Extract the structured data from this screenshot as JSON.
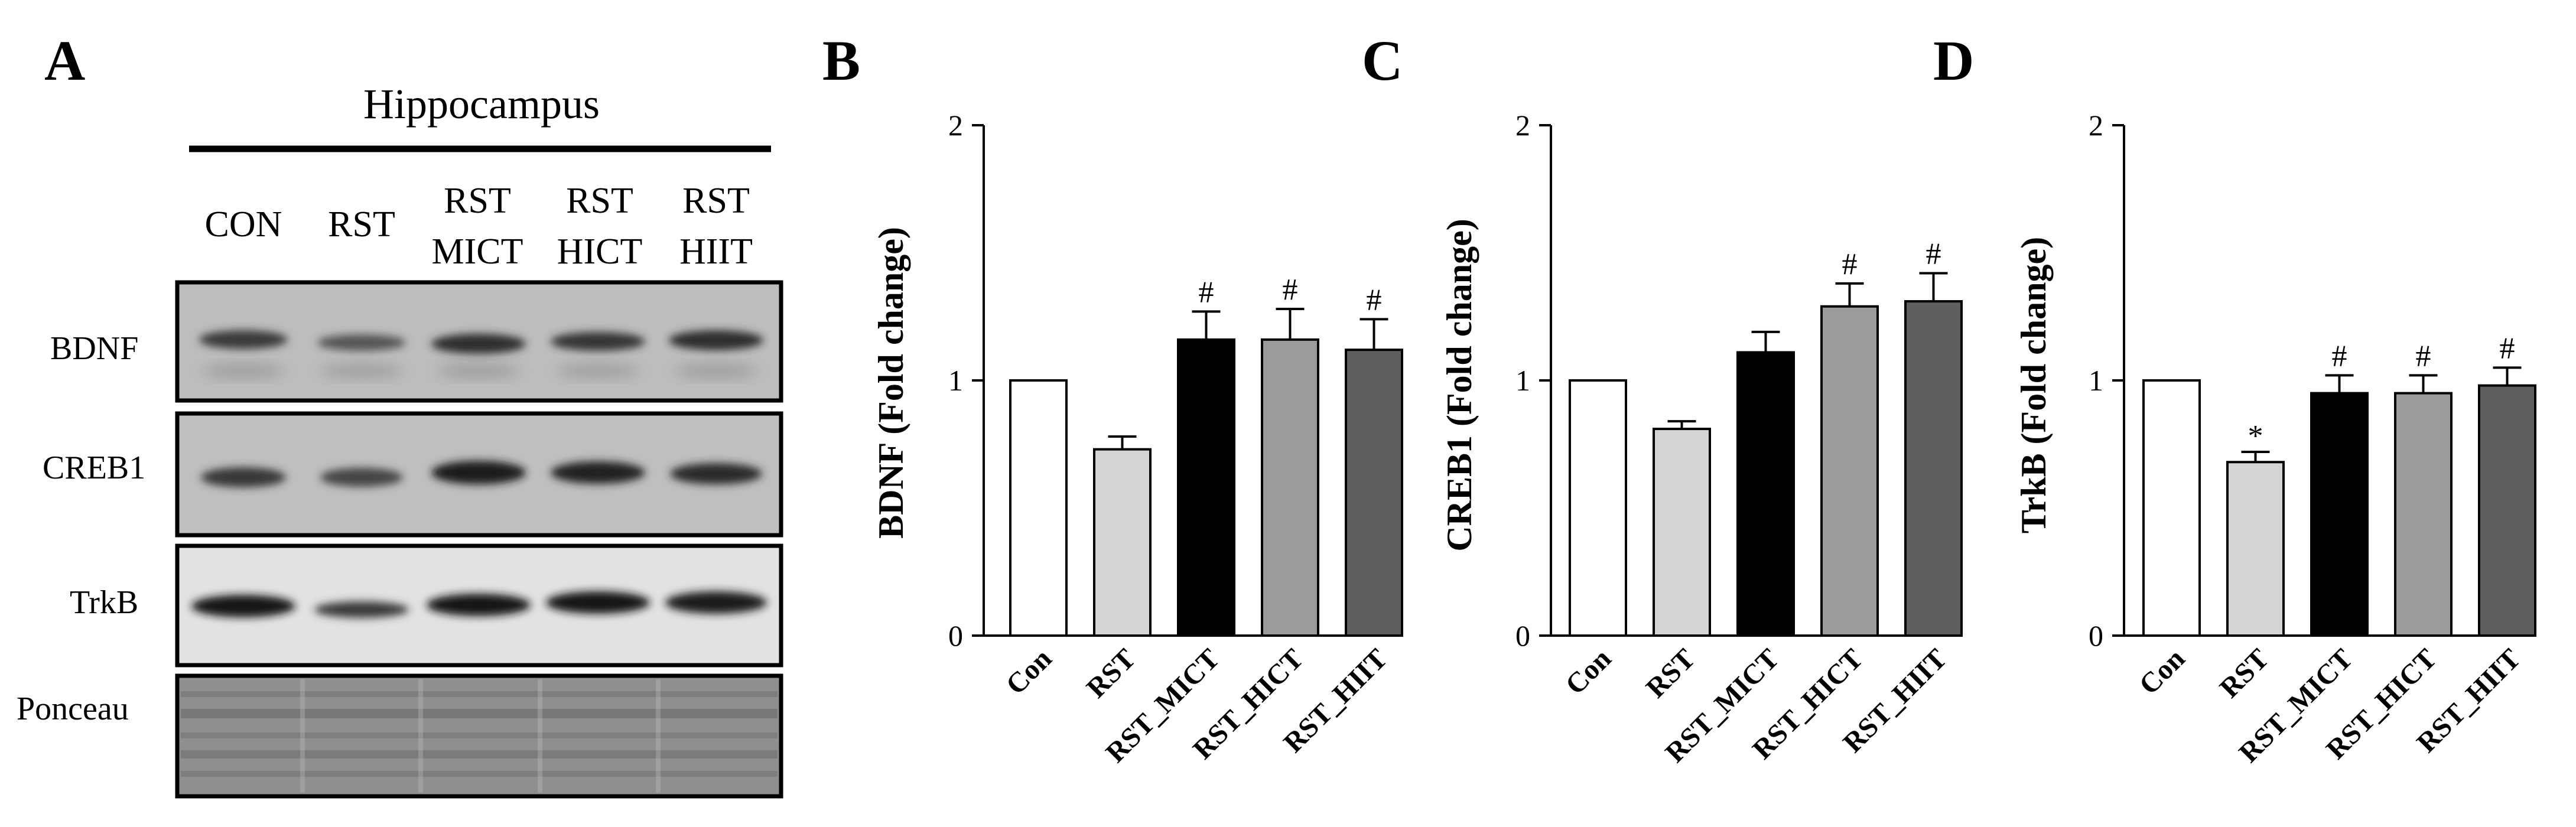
{
  "western_blot": {
    "panel_letter": "A",
    "region_title": "Hippocampus",
    "lanes": [
      {
        "line1": "CON",
        "line2": ""
      },
      {
        "line1": "RST",
        "line2": ""
      },
      {
        "line1": "RST",
        "line2": "MICT"
      },
      {
        "line1": "RST",
        "line2": "HICT"
      },
      {
        "line1": "RST",
        "line2": "HIIT"
      }
    ],
    "blots": [
      "BDNF",
      "CREB1",
      "TrkB",
      "Ponceau"
    ]
  },
  "colors": {
    "Con": "#ffffff",
    "RST": "#d4d4d4",
    "RST_MICT": "#000000",
    "RST_HICT": "#9b9b9b",
    "RST_HIIT": "#5e5e5e"
  },
  "chart_data": [
    {
      "type": "bar",
      "panel_letter": "B",
      "categories": [
        "Con",
        "RST",
        "RST_MICT",
        "RST_HICT",
        "RST_HIIT"
      ],
      "values": [
        1.0,
        0.73,
        1.16,
        1.16,
        1.12
      ],
      "errors": [
        0,
        0.05,
        0.11,
        0.12,
        0.12
      ],
      "annotations": [
        "",
        "",
        "#",
        "#",
        "#"
      ],
      "ylabel": "BDNF (Fold change)",
      "ylim": [
        0,
        2
      ],
      "yticks": [
        "0",
        "1",
        "2"
      ]
    },
    {
      "type": "bar",
      "panel_letter": "C",
      "categories": [
        "Con",
        "RST",
        "RST_MICT",
        "RST_HICT",
        "RST_HIIT"
      ],
      "values": [
        1.0,
        0.81,
        1.11,
        1.29,
        1.31
      ],
      "errors": [
        0,
        0.03,
        0.08,
        0.09,
        0.11
      ],
      "annotations": [
        "",
        "",
        "",
        "#",
        "#"
      ],
      "ylabel": "CREB1 (Fold change)",
      "ylim": [
        0,
        2
      ],
      "yticks": [
        "0",
        "1",
        "2"
      ]
    },
    {
      "type": "bar",
      "panel_letter": "D",
      "categories": [
        "Con",
        "RST",
        "RST_MICT",
        "RST_HICT",
        "RST_HIIT"
      ],
      "values": [
        1.0,
        0.68,
        0.95,
        0.95,
        0.98
      ],
      "errors": [
        0,
        0.04,
        0.07,
        0.07,
        0.07
      ],
      "annotations": [
        "",
        "*",
        "#",
        "#",
        "#"
      ],
      "ylabel": "TrkB (Fold change)",
      "ylim": [
        0,
        2
      ],
      "yticks": [
        "0",
        "1",
        "2"
      ]
    }
  ]
}
